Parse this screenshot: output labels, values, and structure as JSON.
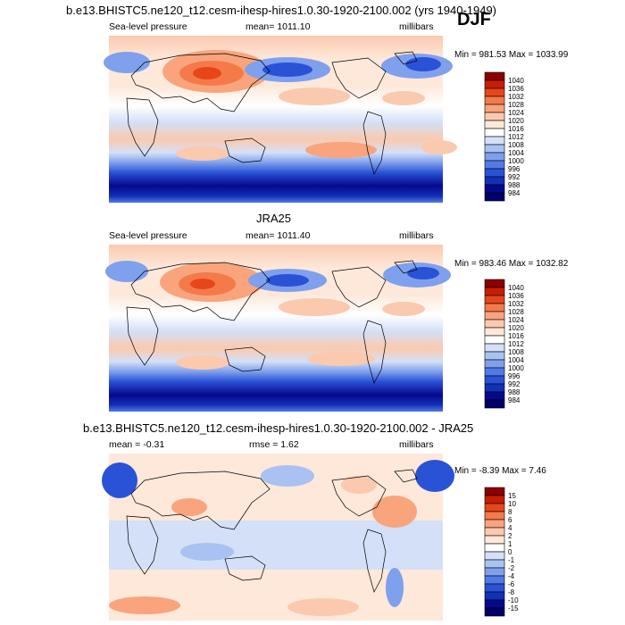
{
  "header": {
    "title": "b.e13.BHISTC5.ne120_t12.cesm-ihesp-hires1.0.30-1920-2100.002 (yrs 1940-1949)",
    "season": "DJF"
  },
  "chart_data": [
    {
      "type": "heatmap",
      "title": "b.e13.BHISTC5.ne120_t12.cesm-ihesp-hires1.0.30-1920-2100.002 (yrs 1940-1949)",
      "variable": "Sea-level pressure",
      "units": "millibars",
      "mean_label": "mean= 1011.10",
      "minmax_label": "Min = 981.53 Max = 1033.99",
      "min": 981.53,
      "max": 1033.99,
      "mean": 1011.1,
      "colorbar_levels": [
        "1040",
        "1036",
        "1032",
        "1028",
        "1024",
        "1020",
        "1016",
        "1012",
        "1008",
        "1004",
        "1000",
        "996",
        "992",
        "988",
        "984"
      ],
      "colorbar_colors": [
        "#8b0000",
        "#c81e00",
        "#e8461a",
        "#f47a4a",
        "#f9a47c",
        "#fbc9ae",
        "#fde8da",
        "#ffffff",
        "#d3e0f7",
        "#a9c2f1",
        "#7fa0ec",
        "#527ae6",
        "#2a52d6",
        "#1230b8",
        "#06088b",
        "#00006b"
      ]
    },
    {
      "type": "heatmap",
      "title": "JRA25",
      "variable": "Sea-level pressure",
      "units": "millibars",
      "mean_label": "mean= 1011.40",
      "minmax_label": "Min = 983.46 Max = 1032.82",
      "min": 983.46,
      "max": 1032.82,
      "mean": 1011.4,
      "colorbar_levels": [
        "1040",
        "1036",
        "1032",
        "1028",
        "1024",
        "1020",
        "1016",
        "1012",
        "1008",
        "1004",
        "1000",
        "996",
        "992",
        "988",
        "984"
      ],
      "colorbar_colors": [
        "#8b0000",
        "#c81e00",
        "#e8461a",
        "#f47a4a",
        "#f9a47c",
        "#fbc9ae",
        "#fde8da",
        "#ffffff",
        "#d3e0f7",
        "#a9c2f1",
        "#7fa0ec",
        "#527ae6",
        "#2a52d6",
        "#1230b8",
        "#06088b",
        "#00006b"
      ]
    },
    {
      "type": "heatmap",
      "title": "b.e13.BHISTC5.ne120_t12.cesm-ihesp-hires1.0.30-1920-2100.002 - JRA25",
      "variable": "",
      "units": "millibars",
      "mean_label": "mean =  -0.31",
      "rmse_label": "rmse =   1.62",
      "minmax_label": "Min =  -8.39 Max =   7.46",
      "min": -8.39,
      "max": 7.46,
      "mean": -0.31,
      "rmse": 1.62,
      "colorbar_levels": [
        "15",
        "10",
        "8",
        "6",
        "4",
        "2",
        "1",
        "0",
        "-1",
        "-2",
        "-4",
        "-6",
        "-8",
        "-10",
        "-15"
      ],
      "colorbar_colors": [
        "#8b0000",
        "#c81e00",
        "#e8461a",
        "#f47a4a",
        "#f9a47c",
        "#fbc9ae",
        "#fde8da",
        "#ffffff",
        "#d3e0f7",
        "#a9c2f1",
        "#7fa0ec",
        "#527ae6",
        "#2a52d6",
        "#1230b8",
        "#06088b",
        "#00006b"
      ]
    }
  ]
}
